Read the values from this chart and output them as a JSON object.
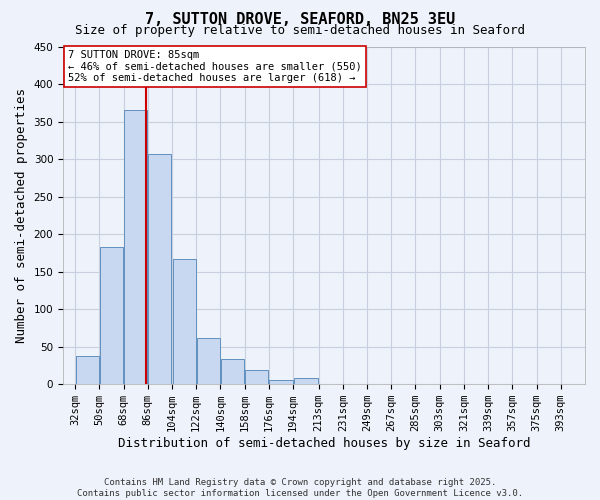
{
  "title": "7, SUTTON DROVE, SEAFORD, BN25 3EU",
  "subtitle": "Size of property relative to semi-detached houses in Seaford",
  "xlabel": "Distribution of semi-detached houses by size in Seaford",
  "ylabel": "Number of semi-detached properties",
  "bar_left_edges": [
    32,
    50,
    68,
    86,
    104,
    122,
    140,
    158,
    176,
    194,
    213,
    231,
    249,
    267,
    285,
    303,
    321,
    339,
    357,
    375
  ],
  "bar_widths": [
    18,
    18,
    18,
    18,
    18,
    18,
    18,
    18,
    18,
    19,
    18,
    18,
    18,
    18,
    18,
    18,
    18,
    18,
    18,
    18
  ],
  "bar_heights": [
    38,
    183,
    365,
    307,
    167,
    61,
    34,
    19,
    5,
    8,
    0,
    0,
    0,
    0,
    0,
    0,
    0,
    0,
    0,
    0
  ],
  "bar_color": "#c8d8f0",
  "bar_edge_color": "#6090c0",
  "red_line_x": 85,
  "annotation_title": "7 SUTTON DROVE: 85sqm",
  "annotation_line1": "← 46% of semi-detached houses are smaller (550)",
  "annotation_line2": "52% of semi-detached houses are larger (618) →",
  "annotation_box_facecolor": "#ffffff",
  "annotation_box_edgecolor": "#cc0000",
  "red_line_color": "#cc0000",
  "ylim": [
    0,
    450
  ],
  "xlim_left": 23,
  "xlim_right": 411,
  "xtick_labels": [
    "32sqm",
    "50sqm",
    "68sqm",
    "86sqm",
    "104sqm",
    "122sqm",
    "140sqm",
    "158sqm",
    "176sqm",
    "194sqm",
    "213sqm",
    "231sqm",
    "249sqm",
    "267sqm",
    "285sqm",
    "303sqm",
    "321sqm",
    "339sqm",
    "357sqm",
    "375sqm",
    "393sqm"
  ],
  "xtick_positions": [
    32,
    50,
    68,
    86,
    104,
    122,
    140,
    158,
    176,
    194,
    213,
    231,
    249,
    267,
    285,
    303,
    321,
    339,
    357,
    375,
    393
  ],
  "ytick_values": [
    0,
    50,
    100,
    150,
    200,
    250,
    300,
    350,
    400,
    450
  ],
  "grid_color": "#c8d0e0",
  "background_color": "#eef2fa",
  "footer_line1": "Contains HM Land Registry data © Crown copyright and database right 2025.",
  "footer_line2": "Contains public sector information licensed under the Open Government Licence v3.0.",
  "title_fontsize": 11,
  "subtitle_fontsize": 9,
  "axis_label_fontsize": 9,
  "tick_fontsize": 7.5,
  "footer_fontsize": 6.5,
  "annotation_fontsize": 7.5
}
